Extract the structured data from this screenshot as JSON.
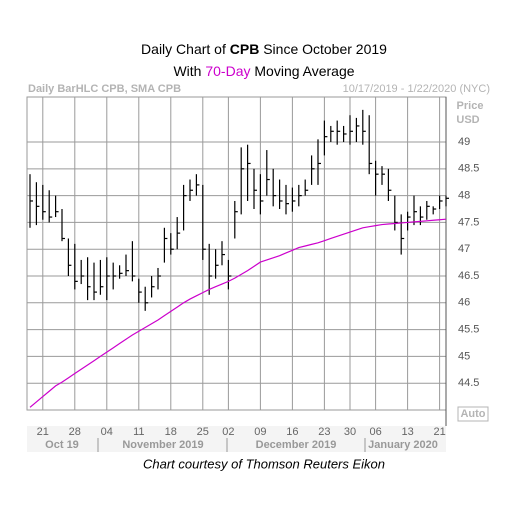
{
  "chart_data": {
    "type": "hlc_bar",
    "title": {
      "before": "Daily Chart of",
      "ticker": "CPB",
      "after": "Since October 2019"
    },
    "subtitle": {
      "before": "With",
      "highlight": "70-Day",
      "after": "Moving Average"
    },
    "header_left": "Daily BarHLC CPB, SMA CPB",
    "header_right": "10/17/2019 - 1/22/2020 (NYC)",
    "y_axis_label": [
      "Price",
      "USD"
    ],
    "auto_label": "Auto",
    "footer": "Chart courtesy of Thomson Reuters Eikon",
    "categories": [
      null,
      null,
      "21",
      null,
      null,
      null,
      null,
      "28",
      null,
      null,
      null,
      null,
      "04",
      null,
      null,
      null,
      null,
      "11",
      null,
      null,
      null,
      null,
      "18",
      null,
      null,
      null,
      null,
      "25",
      null,
      null,
      null,
      "02",
      null,
      null,
      null,
      null,
      "09",
      null,
      null,
      null,
      null,
      "16",
      null,
      null,
      null,
      null,
      "23",
      null,
      null,
      null,
      "30",
      null,
      null,
      null,
      "06",
      null,
      null,
      null,
      null,
      "13",
      null,
      null,
      null,
      null,
      "21",
      null
    ],
    "month_labels": [
      "Oct 19",
      "November 2019",
      "December 2019",
      "January 2020"
    ],
    "bar_color": "#000000",
    "high": [
      48.4,
      48.25,
      48.2,
      48.1,
      48.0,
      47.75,
      47.2,
      47.1,
      46.8,
      46.85,
      46.75,
      46.8,
      46.85,
      46.75,
      46.7,
      46.9,
      47.15,
      46.45,
      46.3,
      46.5,
      46.65,
      47.4,
      47.3,
      47.6,
      48.2,
      48.3,
      48.4,
      48.2,
      47.1,
      47.0,
      47.15,
      46.8,
      47.9,
      48.9,
      48.95,
      48.5,
      48.4,
      48.85,
      48.5,
      48.3,
      48.2,
      48.15,
      48.2,
      48.3,
      48.75,
      49.05,
      49.4,
      49.3,
      49.4,
      49.3,
      49.5,
      49.45,
      49.6,
      49.5,
      48.65,
      48.55,
      48.5,
      48.0,
      47.65,
      47.7,
      48.0,
      47.8,
      47.9,
      47.8,
      48.0,
      48.0
    ],
    "low": [
      47.4,
      47.45,
      47.55,
      47.5,
      47.6,
      47.15,
      46.5,
      46.25,
      46.35,
      46.05,
      46.05,
      46.15,
      46.05,
      46.25,
      46.45,
      46.5,
      46.4,
      46.0,
      45.85,
      46.1,
      46.25,
      46.75,
      46.9,
      47.0,
      47.35,
      47.9,
      48.0,
      46.8,
      46.15,
      46.45,
      46.7,
      46.25,
      47.2,
      47.65,
      47.9,
      47.75,
      47.65,
      48.0,
      47.8,
      47.75,
      47.65,
      47.7,
      47.8,
      48.0,
      48.2,
      48.2,
      48.75,
      49.0,
      48.95,
      49.0,
      48.95,
      49.0,
      48.95,
      48.4,
      48.0,
      48.2,
      47.9,
      47.35,
      46.9,
      47.35,
      47.45,
      47.45,
      47.55,
      47.65,
      47.75,
      47.8
    ],
    "close": [
      47.9,
      47.8,
      47.7,
      47.6,
      47.7,
      47.2,
      46.7,
      46.4,
      46.5,
      46.3,
      46.2,
      46.3,
      46.5,
      46.5,
      46.55,
      46.6,
      46.5,
      46.2,
      46.0,
      46.3,
      46.5,
      47.2,
      47.0,
      47.3,
      48.0,
      48.1,
      48.2,
      47.0,
      46.5,
      46.7,
      46.9,
      46.5,
      47.7,
      48.5,
      48.6,
      48.1,
      47.9,
      48.3,
      48.0,
      47.9,
      47.85,
      47.9,
      48.0,
      48.1,
      48.5,
      48.6,
      49.1,
      49.2,
      49.2,
      49.15,
      49.2,
      49.3,
      49.2,
      48.6,
      48.4,
      48.4,
      48.1,
      47.5,
      47.2,
      47.6,
      47.7,
      47.6,
      47.8,
      47.75,
      47.9,
      47.95
    ],
    "sma": {
      "color": "#cc00cc",
      "values": [
        44.05,
        44.15,
        44.25,
        44.35,
        44.45,
        44.52,
        44.6,
        44.68,
        44.76,
        44.84,
        44.92,
        45.0,
        45.08,
        45.16,
        45.24,
        45.32,
        45.4,
        45.47,
        45.54,
        45.61,
        45.68,
        45.76,
        45.84,
        45.92,
        46.0,
        46.07,
        46.13,
        46.19,
        46.25,
        46.3,
        46.35,
        46.4,
        46.46,
        46.53,
        46.6,
        46.68,
        46.76,
        46.8,
        46.84,
        46.88,
        46.93,
        46.98,
        47.03,
        47.06,
        47.09,
        47.12,
        47.16,
        47.2,
        47.24,
        47.28,
        47.32,
        47.36,
        47.4,
        47.42,
        47.44,
        47.46,
        47.47,
        47.48,
        47.49,
        47.5,
        47.51,
        47.52,
        47.53,
        47.54,
        47.55,
        47.56
      ]
    },
    "ylim": [
      44,
      49.84
    ],
    "yticks": [
      44.5,
      45,
      45.5,
      46,
      46.5,
      47,
      47.5,
      48,
      48.5,
      49
    ],
    "grid": true
  }
}
